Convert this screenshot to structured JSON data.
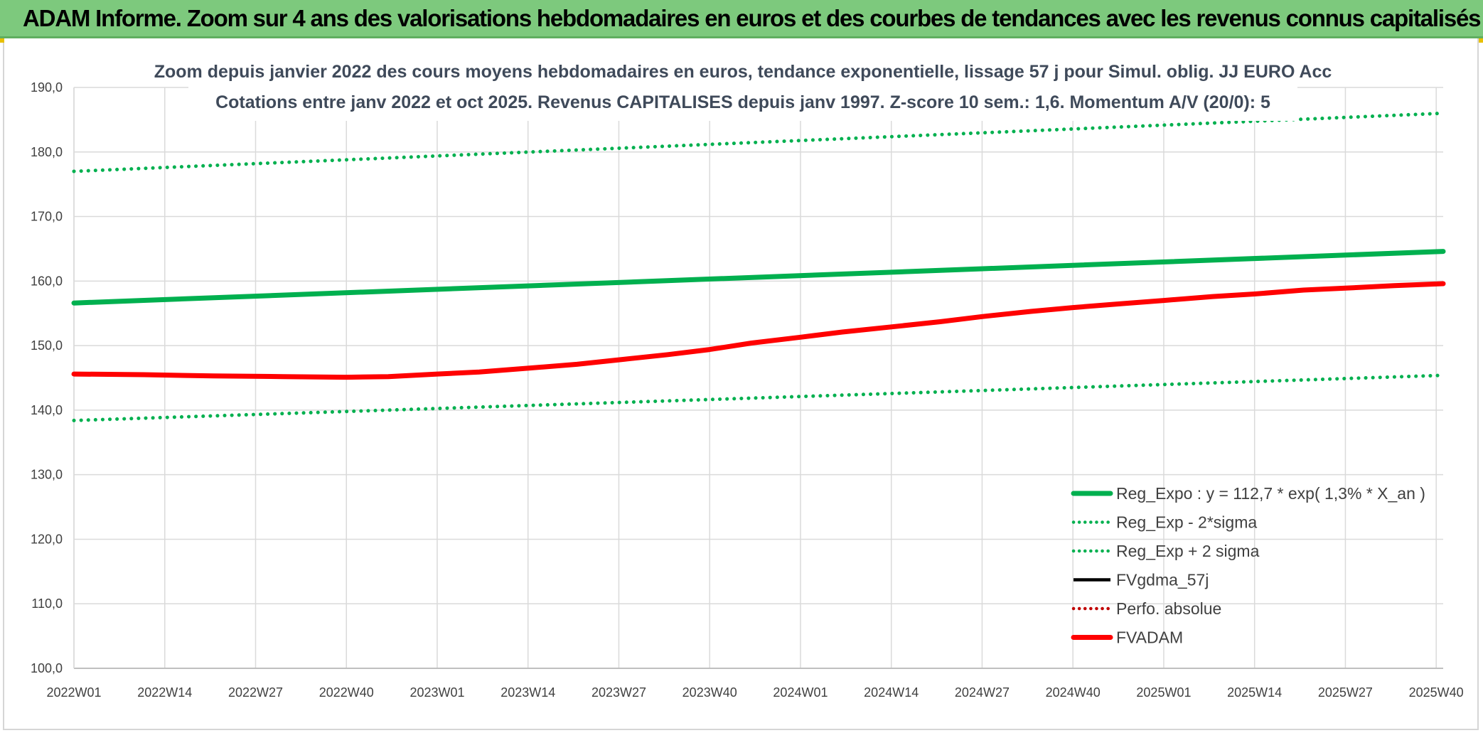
{
  "header": {
    "banner_title": "ADAM Informe. Zoom sur 4 ans des valorisations hebdomadaires en euros et des courbes de tendances avec les revenus connus capitalisés"
  },
  "colors": {
    "banner_bg": "#7dc97d",
    "reg_green": "#00b04f",
    "fvadam_red": "#ff0000",
    "fvgdma_black": "#000000",
    "perfo_red": "#c00000"
  },
  "chart_data": {
    "type": "line",
    "title_lines": [
      "Zoom depuis janvier 2022 des cours moyens hebdomadaires en euros, tendance exponentielle, lissage 57 j pour Simul. oblig. JJ EURO Acc",
      "Cotations entre janv 2022 et oct 2025. Revenus CAPITALISES depuis janv 1997. Z-score 10 sem.: 1,6. Momentum A/V (20/0): 5"
    ],
    "x_tick_labels": [
      "2022W01",
      "2022W14",
      "2022W27",
      "2022W40",
      "2023W01",
      "2023W14",
      "2023W27",
      "2023W40",
      "2024W01",
      "2024W14",
      "2024W27",
      "2024W40",
      "2025W01",
      "2025W14",
      "2025W27",
      "2025W40"
    ],
    "x_range_weeks": [
      0,
      196
    ],
    "ylim": [
      100,
      190
    ],
    "y_ticks": [
      "100,0",
      "110,0",
      "120,0",
      "130,0",
      "140,0",
      "150,0",
      "160,0",
      "170,0",
      "180,0",
      "190,0"
    ],
    "grid": true,
    "legend_position": "bottom-right",
    "series": [
      {
        "name": "Reg_Expo : y = 112,7 * exp( 1,3% *  X_an )",
        "style": "solid-thick",
        "color": "#00b04f",
        "x": [
          0,
          196
        ],
        "y": [
          156.6,
          164.6
        ]
      },
      {
        "name": "Reg_Exp - 2*sigma",
        "style": "dotted",
        "color": "#00b04f",
        "x": [
          0,
          196
        ],
        "y": [
          138.4,
          145.4
        ]
      },
      {
        "name": "Reg_Exp + 2 sigma",
        "style": "dotted",
        "color": "#00b04f",
        "x": [
          0,
          196
        ],
        "y": [
          177.0,
          186.0
        ]
      },
      {
        "name": "FVgdma_57j",
        "style": "solid",
        "color": "#000000",
        "x": [],
        "y": []
      },
      {
        "name": "Perfo. absolue",
        "style": "dotted",
        "color": "#c00000",
        "x": [],
        "y": []
      },
      {
        "name": "FVADAM",
        "style": "solid-thick",
        "color": "#ff0000",
        "x": [
          0,
          10,
          20,
          30,
          39,
          45,
          52,
          58,
          65,
          72,
          78,
          85,
          91,
          97,
          104,
          110,
          117,
          124,
          130,
          137,
          143,
          150,
          156,
          163,
          169,
          176,
          182,
          189,
          196
        ],
        "y": [
          145.6,
          145.5,
          145.3,
          145.2,
          145.1,
          145.2,
          145.6,
          145.9,
          146.5,
          147.1,
          147.8,
          148.6,
          149.4,
          150.4,
          151.3,
          152.1,
          152.9,
          153.7,
          154.5,
          155.3,
          155.9,
          156.5,
          157.0,
          157.6,
          158.0,
          158.6,
          158.9,
          159.3,
          159.6
        ]
      }
    ]
  }
}
